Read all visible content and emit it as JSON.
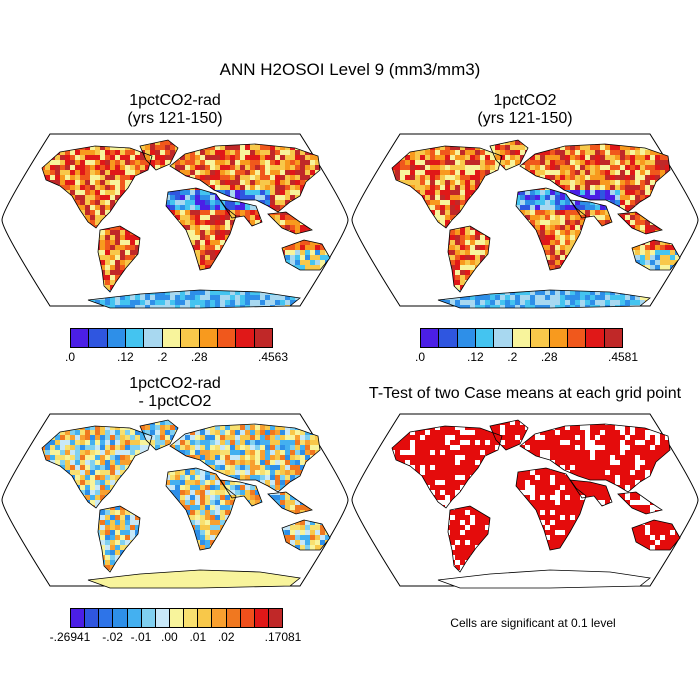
{
  "title": "ANN H2OSOI Level 9 (mm3/mm3)",
  "panels": [
    {
      "title_line1": "1pctCO2-rad",
      "title_line2": "(yrs 121-150)",
      "style": "value"
    },
    {
      "title_line1": "1pctCO2",
      "title_line2": "(yrs 121-150)",
      "style": "value"
    },
    {
      "title_line1": "1pctCO2-rad",
      "title_line2": "- 1pctCO2",
      "style": "diff"
    },
    {
      "title_line1": "T-Test of two Case means at each grid point",
      "title_line2": "",
      "style": "ttest"
    }
  ],
  "colorbars": [
    {
      "colors": [
        "#4b1fe6",
        "#2f56e0",
        "#2e8fe8",
        "#44c4f0",
        "#a8d8f0",
        "#f8f49c",
        "#f8c84a",
        "#f89a1e",
        "#f0581c",
        "#e01818",
        "#c02828"
      ],
      "labels": [
        ".0",
        ".12",
        ".2",
        ".28",
        ".4563"
      ],
      "label_bins": [
        0,
        3,
        5,
        7,
        11
      ]
    },
    {
      "colors": [
        "#4b1fe6",
        "#2f56e0",
        "#2e8fe8",
        "#44c4f0",
        "#a8d8f0",
        "#f8f49c",
        "#f8c84a",
        "#f89a1e",
        "#f0581c",
        "#e01818",
        "#c02828"
      ],
      "labels": [
        ".0",
        ".12",
        ".2",
        ".28",
        ".4581"
      ],
      "label_bins": [
        0,
        3,
        5,
        7,
        11
      ]
    },
    {
      "colors": [
        "#4b1fe6",
        "#2f56e0",
        "#2e74e8",
        "#2e8fe8",
        "#44b0f0",
        "#80d0f0",
        "#c8e8f8",
        "#f8f49c",
        "#f8e070",
        "#f8c84a",
        "#f8a030",
        "#f07820",
        "#f0501c",
        "#e01818",
        "#c02828"
      ],
      "labels": [
        "-.26941",
        "-.02",
        "-.01",
        ".00",
        ".01",
        ".02",
        ".17081"
      ],
      "label_bins": [
        0,
        3,
        5,
        7,
        9,
        11,
        15
      ]
    }
  ],
  "note": "Cells are significant at 0.1 level",
  "colors": {
    "ocean": "#ffffff",
    "outline": "#000000",
    "ttest_signif": "#e40c0c"
  }
}
